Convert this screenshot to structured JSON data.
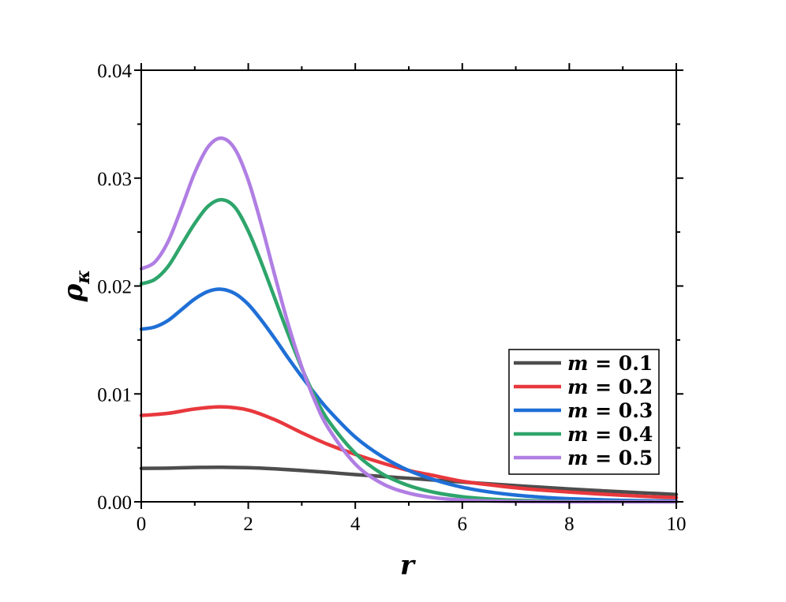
{
  "chart_data": {
    "type": "line",
    "xlabel": "r",
    "ylabel_main": "ρ",
    "ylabel_sub": "κ",
    "xlim": [
      0,
      10
    ],
    "ylim": [
      0,
      0.04
    ],
    "xticks": [
      0,
      2,
      4,
      6,
      8,
      10
    ],
    "xtick_labels": [
      "0",
      "2",
      "4",
      "6",
      "8",
      "10"
    ],
    "yticks": [
      0,
      0.01,
      0.02,
      0.03,
      0.04
    ],
    "ytick_labels": [
      "0.00",
      "0.01",
      "0.02",
      "0.03",
      "0.04"
    ],
    "grid": false,
    "legend_position": "center-right",
    "series": [
      {
        "name": "m = 0.1",
        "legend_var": "m",
        "legend_rest": " = 0.1",
        "color": "#4d4d4d",
        "x": [
          0,
          0.5,
          1,
          1.5,
          2,
          2.5,
          3,
          3.5,
          4,
          4.5,
          5,
          5.5,
          6,
          6.5,
          7,
          7.5,
          8,
          8.5,
          9,
          9.5,
          10
        ],
        "y": [
          0.0031,
          0.00312,
          0.00318,
          0.0032,
          0.00316,
          0.00305,
          0.0029,
          0.00272,
          0.00252,
          0.00235,
          0.00218,
          0.002,
          0.00183,
          0.00166,
          0.0015,
          0.00134,
          0.00119,
          0.00105,
          0.00092,
          0.0008,
          0.00068
        ]
      },
      {
        "name": "m = 0.2",
        "legend_var": "m",
        "legend_rest": " = 0.2",
        "color": "#e8383d",
        "x": [
          0,
          0.5,
          1,
          1.5,
          2,
          2.5,
          3,
          3.5,
          4,
          4.5,
          5,
          5.5,
          6,
          6.5,
          7,
          7.5,
          8,
          8.5,
          9,
          9.5,
          10
        ],
        "y": [
          0.008,
          0.0082,
          0.0086,
          0.0088,
          0.0085,
          0.0076,
          0.0064,
          0.0053,
          0.0044,
          0.0036,
          0.0029,
          0.0024,
          0.0019,
          0.00158,
          0.0013,
          0.00108,
          0.0009,
          0.00074,
          0.0006,
          0.00048,
          0.00038
        ]
      },
      {
        "name": "m = 0.3",
        "legend_var": "m",
        "legend_rest": " = 0.3",
        "color": "#1f6fd6",
        "x": [
          0,
          0.25,
          0.5,
          0.75,
          1,
          1.25,
          1.5,
          1.75,
          2,
          2.25,
          2.5,
          2.75,
          3,
          3.25,
          3.5,
          4,
          4.5,
          5,
          5.5,
          6,
          6.5,
          7,
          7.5,
          8,
          9,
          10
        ],
        "y": [
          0.016,
          0.0162,
          0.0168,
          0.0178,
          0.0188,
          0.0195,
          0.0197,
          0.0193,
          0.0183,
          0.0168,
          0.0151,
          0.0133,
          0.0116,
          0.01,
          0.0085,
          0.006,
          0.0042,
          0.0029,
          0.002,
          0.00135,
          0.00092,
          0.00062,
          0.00042,
          0.00028,
          0.00013,
          6e-05
        ]
      },
      {
        "name": "m = 0.4",
        "legend_var": "m",
        "legend_rest": " = 0.4",
        "color": "#2ea56b",
        "x": [
          0,
          0.25,
          0.5,
          0.75,
          1,
          1.25,
          1.5,
          1.75,
          2,
          2.25,
          2.5,
          2.75,
          3,
          3.25,
          3.5,
          4,
          4.5,
          5,
          5.5,
          6,
          6.5,
          7,
          8,
          9,
          10
        ],
        "y": [
          0.0202,
          0.0206,
          0.0218,
          0.0238,
          0.0258,
          0.0274,
          0.028,
          0.0273,
          0.0251,
          0.0221,
          0.0188,
          0.0155,
          0.0124,
          0.0097,
          0.0075,
          0.0045,
          0.0026,
          0.0015,
          0.00085,
          0.00047,
          0.00026,
          0.00014,
          4e-05,
          1e-05,
          0.0
        ]
      },
      {
        "name": "m = 0.5",
        "legend_var": "m",
        "legend_rest": " = 0.5",
        "color": "#b07ee3",
        "x": [
          0,
          0.25,
          0.5,
          0.75,
          1,
          1.25,
          1.5,
          1.75,
          2,
          2.25,
          2.5,
          2.75,
          3,
          3.25,
          3.5,
          4,
          4.5,
          5,
          5.5,
          6,
          6.5,
          7,
          8,
          9,
          10
        ],
        "y": [
          0.0216,
          0.0222,
          0.0241,
          0.0272,
          0.0305,
          0.0329,
          0.0337,
          0.0327,
          0.0298,
          0.0256,
          0.0209,
          0.0164,
          0.0125,
          0.0093,
          0.0068,
          0.0035,
          0.0017,
          0.0008,
          0.00036,
          0.00016,
          7e-05,
          3e-05,
          0.0,
          0.0,
          0.0
        ]
      }
    ]
  }
}
